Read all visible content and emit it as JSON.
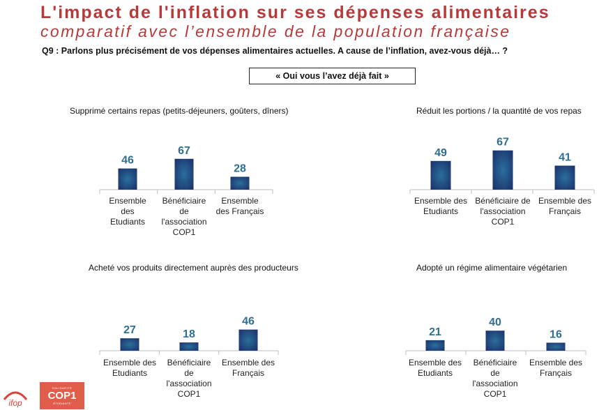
{
  "title": "L'impact de l'inflation sur ses dépenses alimentaires",
  "subtitle": "comparatif avec l’ensemble de la population française",
  "question": "Q9 : Parlons plus précisément de vos dépenses alimentaires actuelles. A cause de l’inflation, avez-vous déjà… ?",
  "answer_label": "« Oui vous l’avez déjà fait »",
  "colors": {
    "title": "#b73a3a",
    "bar_center": "#2a6f9c",
    "bar_edge": "#1c2f6a",
    "value_label": "#2f6f8f",
    "axis": "#bfbfbf"
  },
  "chart_data": [
    {
      "type": "bar",
      "title": "Supprimé certains repas (petits-déjeuners, goûters, dîners)",
      "categories": [
        "Ensemble des Etudiants",
        "Bénéficiaire de l'association COP1",
        "Ensemble des Français"
      ],
      "category_lines": [
        [
          "Ensemble",
          "des",
          "Etudiants"
        ],
        [
          "Bénéficiaire",
          "de",
          "l'association",
          "COP1"
        ],
        [
          "Ensemble",
          "des Français"
        ]
      ],
      "values": [
        46,
        67,
        28
      ],
      "ylim": [
        0,
        100
      ]
    },
    {
      "type": "bar",
      "title": "Réduit les portions / la quantité de vos repas",
      "categories": [
        "Ensemble des Etudiants",
        "Bénéficiaire de l'association COP1",
        "Ensemble des Français"
      ],
      "category_lines": [
        [
          "Ensemble des",
          "Etudiants"
        ],
        [
          "Bénéficiaire de",
          "l'association",
          "COP1"
        ],
        [
          "Ensemble des",
          "Français"
        ]
      ],
      "values": [
        49,
        67,
        41
      ],
      "ylim": [
        0,
        100
      ]
    },
    {
      "type": "bar",
      "title": "Acheté vos produits directement auprès des producteurs",
      "categories": [
        "Ensemble des Etudiants",
        "Bénéficiaire de l'association COP1",
        "Ensemble des Français"
      ],
      "category_lines": [
        [
          "Ensemble des",
          "Etudiants"
        ],
        [
          "Bénéficiaire",
          "de",
          "l'association",
          "COP1"
        ],
        [
          "Ensemble des",
          "Français"
        ]
      ],
      "values": [
        27,
        18,
        46
      ],
      "ylim": [
        0,
        100
      ]
    },
    {
      "type": "bar",
      "title": "Adopté un régime alimentaire végétarien",
      "categories": [
        "Ensemble des Etudiants",
        "Bénéficiaire de l'association COP1",
        "Ensemble des Français"
      ],
      "category_lines": [
        [
          "Ensemble des",
          "Etudiants"
        ],
        [
          "Bénéficiaire",
          "de",
          "l'association",
          "COP1"
        ],
        [
          "Ensemble des",
          "Français"
        ]
      ],
      "values": [
        21,
        40,
        16
      ],
      "ylim": [
        0,
        100
      ]
    }
  ],
  "logos": {
    "ifop": "ifop",
    "coop_small_top": "SOLIDARITÉ",
    "coop_main": "COP1",
    "coop_small_bottom": "ÉTUDIANTE"
  }
}
